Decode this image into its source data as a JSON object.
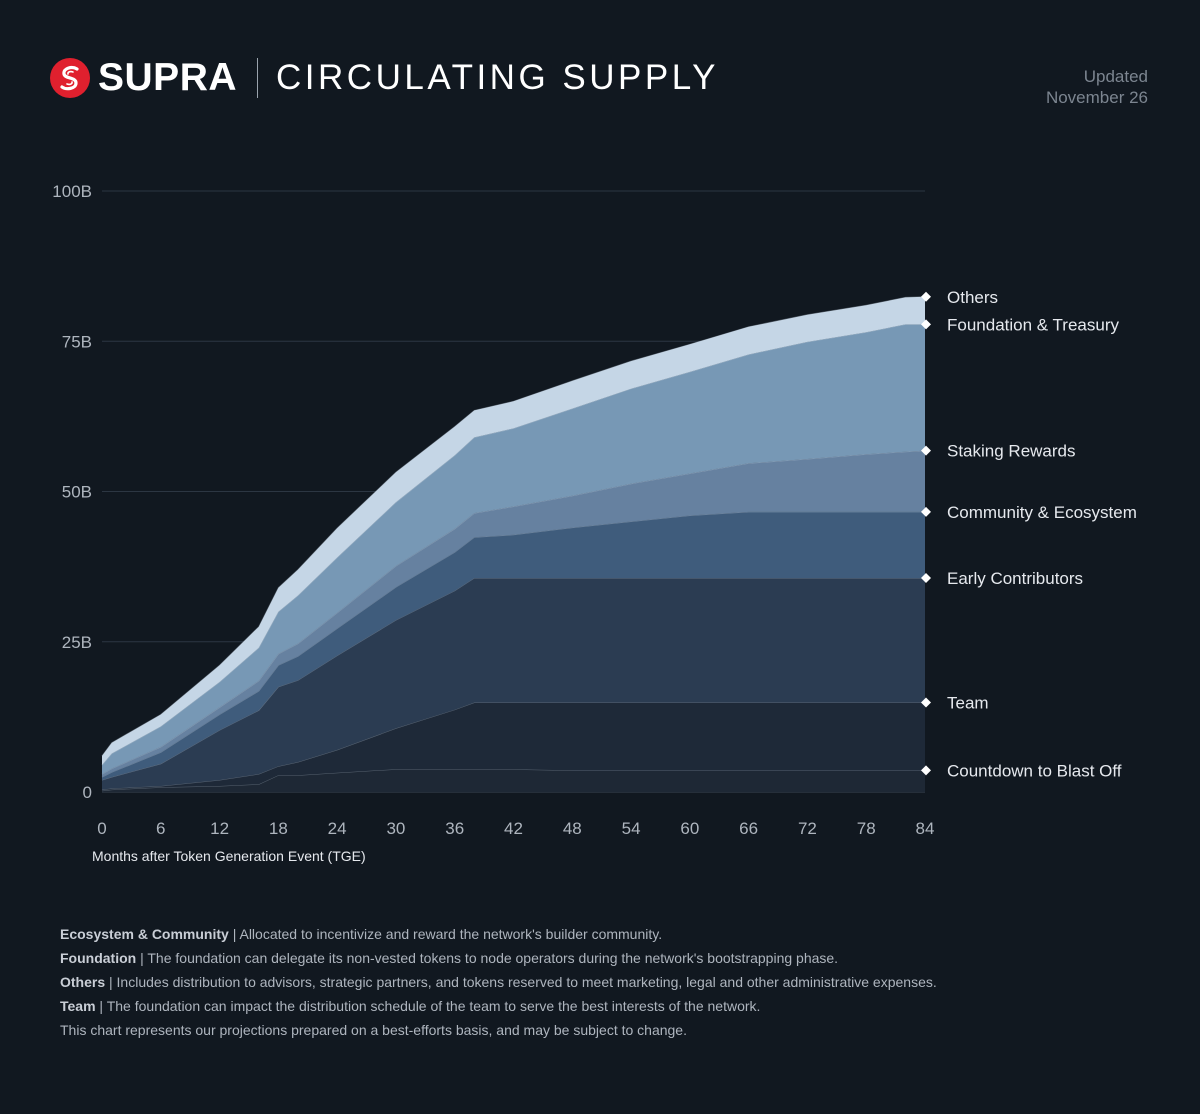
{
  "header": {
    "brand": "SUPRA",
    "title": "CIRCULATING SUPPLY",
    "updated_label": "Updated",
    "updated_date": "November 26"
  },
  "colors": {
    "background": "#111820",
    "brand_red": "#e0202e",
    "countdown": "#1e2835",
    "team": "#1e2938",
    "early": "#2b3c52",
    "community": "#3f5c7c",
    "staking": "#6681a0",
    "foundation": "#7798b5",
    "others": "#c5d6e6"
  },
  "chart_data": {
    "type": "area",
    "stacked": true,
    "title": "CIRCULATING SUPPLY",
    "xlabel": "Months after Token Generation Event (TGE)",
    "ylabel": "",
    "xlim": [
      0,
      84
    ],
    "ylim": [
      0,
      100
    ],
    "x_ticks": [
      0,
      6,
      12,
      18,
      24,
      30,
      36,
      42,
      48,
      54,
      60,
      66,
      72,
      78,
      84
    ],
    "y_ticks": [
      0,
      25,
      50,
      75,
      100
    ],
    "y_tick_labels": [
      "0",
      "25B",
      "50B",
      "75B",
      "100B"
    ],
    "units": "billions of tokens",
    "x": [
      0,
      1,
      6,
      12,
      16,
      18,
      20,
      24,
      30,
      36,
      38,
      42,
      48,
      54,
      60,
      66,
      72,
      78,
      82,
      84
    ],
    "series": [
      {
        "name": "Countdown to Blast Off",
        "values": [
          0.2,
          0.4,
          0.8,
          1.0,
          1.3,
          2.8,
          2.8,
          3.2,
          3.8,
          3.8,
          3.8,
          3.8,
          3.6,
          3.6,
          3.6,
          3.6,
          3.6,
          3.6,
          3.6,
          3.6
        ]
      },
      {
        "name": "Team",
        "values": [
          0.2,
          0.2,
          0.2,
          1.0,
          1.7,
          1.5,
          2.2,
          3.8,
          6.8,
          9.9,
          11.1,
          11.1,
          11.3,
          11.3,
          11.3,
          11.3,
          11.3,
          11.3,
          11.3,
          11.3
        ]
      },
      {
        "name": "Early Contributors",
        "values": [
          1.6,
          1.9,
          3.7,
          8.3,
          10.6,
          13.2,
          13.6,
          15.7,
          18.0,
          19.8,
          20.7,
          20.7,
          20.7,
          20.7,
          20.7,
          20.7,
          20.7,
          20.7,
          20.7,
          20.7
        ]
      },
      {
        "name": "Community & Ecosystem",
        "values": [
          0.5,
          0.8,
          1.9,
          2.6,
          3.2,
          3.6,
          4.0,
          4.5,
          5.5,
          6.4,
          6.8,
          7.2,
          8.4,
          9.4,
          10.4,
          11.0,
          11.0,
          11.0,
          11.0,
          11.0
        ]
      },
      {
        "name": "Staking Rewards",
        "values": [
          0.5,
          0.6,
          0.9,
          1.2,
          1.7,
          1.9,
          2.1,
          2.6,
          3.5,
          3.9,
          4.0,
          4.7,
          5.3,
          6.3,
          7.0,
          8.1,
          8.8,
          9.6,
          10.0,
          10.2
        ]
      },
      {
        "name": "Foundation & Treasury",
        "values": [
          1.5,
          2.5,
          3.4,
          4.2,
          5.5,
          7.0,
          8.0,
          9.2,
          10.6,
          12.2,
          12.6,
          13.0,
          14.5,
          15.8,
          16.9,
          18.1,
          19.5,
          20.3,
          21.2,
          21.0
        ]
      },
      {
        "name": "Others",
        "values": [
          1.5,
          1.8,
          2.0,
          2.8,
          3.5,
          4.0,
          4.3,
          4.9,
          5.0,
          4.8,
          4.5,
          4.5,
          4.6,
          4.6,
          4.6,
          4.6,
          4.5,
          4.5,
          4.5,
          4.6
        ]
      }
    ],
    "legend_placement": "right, at series end",
    "grid": true
  },
  "notes": [
    {
      "label": "Ecosystem & Community",
      "text": "Allocated to incentivize and reward the network's builder community."
    },
    {
      "label": "Foundation",
      "text": "The foundation can delegate its non-vested tokens to node operators during the network's bootstrapping phase."
    },
    {
      "label": "Others",
      "text": "Includes distribution to advisors, strategic partners, and tokens reserved to meet marketing, legal and other administrative expenses."
    },
    {
      "label": "Team",
      "text": "The foundation can impact the distribution schedule of the team to serve the best interests of the network."
    }
  ],
  "disclaimer": "This chart represents our projections prepared on a best-efforts basis, and may be subject to change."
}
